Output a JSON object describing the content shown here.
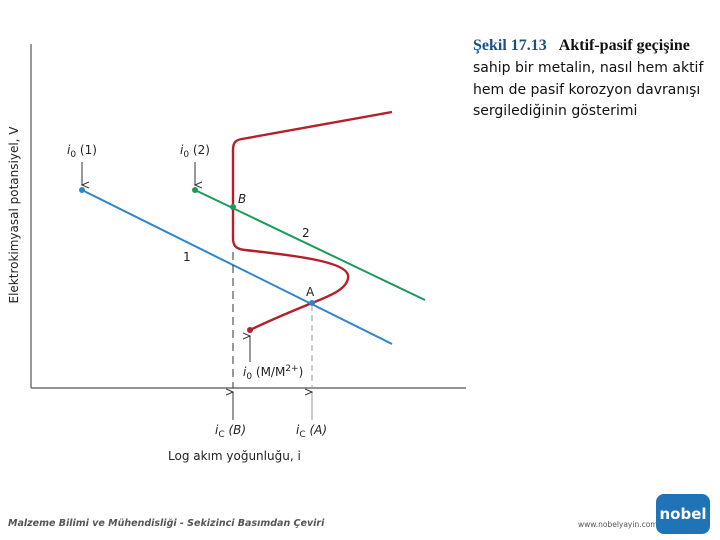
{
  "caption": {
    "number": "Şekil 17.13",
    "title": "Aktif-pasif geçişine",
    "lines": [
      "sahip bir metalin, nasıl hem aktif",
      "hem de pasif korozyon davranışı",
      "sergilediğinin gösterimi"
    ]
  },
  "axes": {
    "y_label": "Elektrokimyasal potansiyel, V",
    "x_label": "Log akım yoğunluğu, i"
  },
  "labels": {
    "i0_1": [
      "i",
      "0",
      " (1)"
    ],
    "i0_2": [
      "i",
      "0",
      " (2)"
    ],
    "i0_m": [
      "i",
      "0",
      " (M/M",
      "2+",
      ")"
    ],
    "ic_b": [
      "i",
      "C",
      " (B)"
    ],
    "ic_a": [
      "i",
      "C",
      " (A)"
    ],
    "point_b": "B",
    "point_a": "A",
    "line_1": "1",
    "line_2": "2"
  },
  "footer": {
    "text": "Malzeme Bilimi ve Mühendisliği - Sekizinci Basımdan Çeviri",
    "url": "www.nobelyayin.com",
    "logo": "nobel"
  }
}
